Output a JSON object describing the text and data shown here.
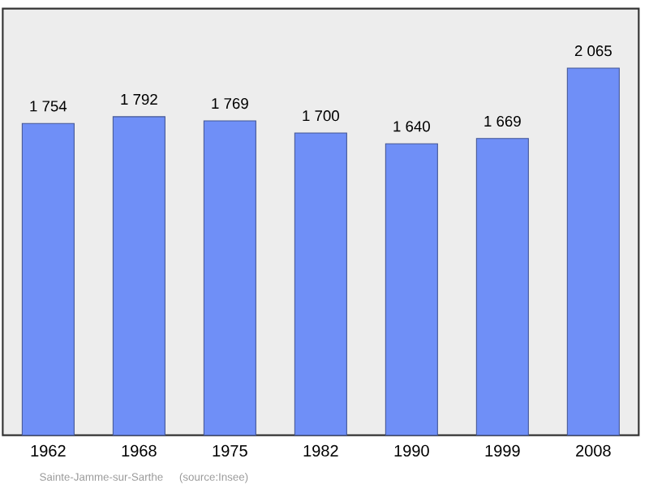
{
  "chart_data": {
    "type": "bar",
    "categories": [
      "1962",
      "1968",
      "1975",
      "1982",
      "1990",
      "1999",
      "2008"
    ],
    "values": [
      1754,
      1792,
      1769,
      1700,
      1640,
      1669,
      2065
    ],
    "value_labels": [
      "1 754",
      "1 792",
      "1 769",
      "1 700",
      "1 640",
      "1 669",
      "2 065"
    ],
    "color": "#6f8ff7",
    "ylim": [
      0,
      2400
    ],
    "tick_labels": "x",
    "annotations": [
      "Sainte-Jamme-sur-Sarthe",
      "(source:Insee)"
    ]
  }
}
